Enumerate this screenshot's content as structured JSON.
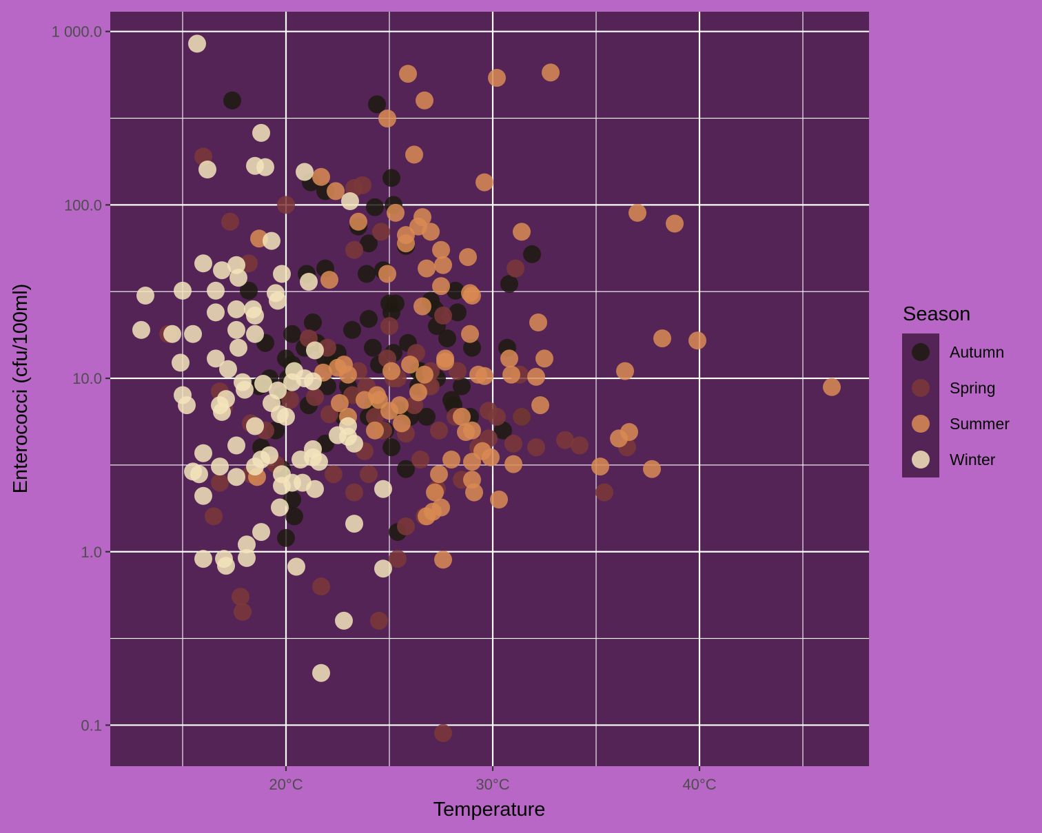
{
  "chart_data": {
    "type": "scatter",
    "xlabel": "Temperature",
    "ylabel": "Enterococci (cfu/100ml)",
    "x_unit": "°C",
    "y_scale": "log10",
    "xlim": [
      11.5,
      48.2
    ],
    "ylim": [
      0.058,
      1300
    ],
    "x_ticks": [
      20,
      30,
      40
    ],
    "x_tick_labels": [
      "20°C",
      "30°C",
      "40°C"
    ],
    "y_ticks": [
      0.1,
      1,
      10,
      100,
      1000
    ],
    "y_tick_labels": [
      "0.1",
      "1.0",
      "10.0",
      "100.0",
      "1 000.0"
    ],
    "grid": true,
    "legend_position": "right",
    "legend_title": "Season",
    "colors": {
      "panel_background": "#542457",
      "page_background": "#b967c7",
      "grid_major": "#ffffff",
      "grid_minor": "#ffffff"
    },
    "series": [
      {
        "name": "Autumn",
        "color": "#1f1a10",
        "points": [
          [
            17.4,
            400
          ],
          [
            24.4,
            380
          ],
          [
            21.2,
            135
          ],
          [
            21.9,
            120
          ],
          [
            25.1,
            143
          ],
          [
            24.3,
            97
          ],
          [
            25.2,
            100
          ],
          [
            23.5,
            75
          ],
          [
            24.0,
            60
          ],
          [
            25.8,
            58
          ],
          [
            21.0,
            40
          ],
          [
            21.9,
            43
          ],
          [
            24.7,
            42
          ],
          [
            23.9,
            40
          ],
          [
            18.2,
            32
          ],
          [
            21.3,
            21
          ],
          [
            23.2,
            19
          ],
          [
            25.0,
            27
          ],
          [
            25.3,
            27
          ],
          [
            25.1,
            24
          ],
          [
            27.0,
            28
          ],
          [
            27.2,
            25
          ],
          [
            28.2,
            32
          ],
          [
            31.9,
            52
          ],
          [
            30.8,
            35
          ],
          [
            19.0,
            16
          ],
          [
            20.0,
            13
          ],
          [
            20.3,
            18
          ],
          [
            20.9,
            15
          ],
          [
            21.5,
            16
          ],
          [
            21.9,
            13
          ],
          [
            24.2,
            15
          ],
          [
            24.5,
            12
          ],
          [
            25.2,
            14
          ],
          [
            25.9,
            16
          ],
          [
            26.4,
            11
          ],
          [
            27.3,
            20
          ],
          [
            27.8,
            17
          ],
          [
            28.3,
            24
          ],
          [
            29.0,
            15
          ],
          [
            30.7,
            15
          ],
          [
            18.7,
            9
          ],
          [
            19.2,
            10
          ],
          [
            19.5,
            5
          ],
          [
            19.8,
            8
          ],
          [
            20.1,
            10
          ],
          [
            20.3,
            12
          ],
          [
            21.1,
            7
          ],
          [
            22.0,
            9
          ],
          [
            22.2,
            12
          ],
          [
            22.8,
            6
          ],
          [
            23.1,
            8
          ],
          [
            24.0,
            6
          ],
          [
            24.2,
            7
          ],
          [
            24.8,
            5
          ],
          [
            25.1,
            4
          ],
          [
            25.8,
            3
          ],
          [
            26.0,
            6
          ],
          [
            26.4,
            9
          ],
          [
            26.8,
            6
          ],
          [
            27.3,
            10
          ],
          [
            28.1,
            7
          ],
          [
            28.5,
            9
          ],
          [
            28.9,
            6
          ],
          [
            30.5,
            5
          ],
          [
            31.4,
            6
          ],
          [
            18.8,
            4
          ],
          [
            19.8,
            3
          ],
          [
            20.3,
            2
          ],
          [
            20.4,
            1.6
          ],
          [
            20.0,
            1.2
          ],
          [
            21.9,
            4.2
          ],
          [
            25.4,
            1.3
          ],
          [
            24.5,
            7.0
          ],
          [
            23.0,
            9.0
          ],
          [
            25.5,
            6.5
          ],
          [
            28.0,
            7.5
          ],
          [
            26.5,
            11.0
          ],
          [
            22.5,
            14
          ],
          [
            24.0,
            22
          ]
        ]
      },
      {
        "name": "Spring",
        "color": "#7d3838",
        "points": [
          [
            16.0,
            190
          ],
          [
            17.3,
            80
          ],
          [
            20.0,
            100
          ],
          [
            23.3,
            125
          ],
          [
            23.7,
            130
          ],
          [
            24.6,
            70
          ],
          [
            23.3,
            55
          ],
          [
            18.2,
            46
          ],
          [
            21.1,
            17
          ],
          [
            22.0,
            15
          ],
          [
            23.5,
            11
          ],
          [
            23.9,
            9
          ],
          [
            24.9,
            13
          ],
          [
            25.4,
            10
          ],
          [
            26.3,
            14
          ],
          [
            27.0,
            11
          ],
          [
            27.6,
            23
          ],
          [
            26.9,
            9
          ],
          [
            28.3,
            11
          ],
          [
            14.3,
            18
          ],
          [
            16.8,
            8.4
          ],
          [
            17.0,
            6.8
          ],
          [
            18.3,
            5.5
          ],
          [
            19.0,
            5
          ],
          [
            20.2,
            7.5
          ],
          [
            21.4,
            7.8
          ],
          [
            22.1,
            6.2
          ],
          [
            23.2,
            8
          ],
          [
            23.8,
            3.8
          ],
          [
            24.3,
            6
          ],
          [
            24.7,
            5
          ],
          [
            25.0,
            20
          ],
          [
            25.2,
            10
          ],
          [
            25.8,
            4.8
          ],
          [
            26.2,
            7
          ],
          [
            27.0,
            9
          ],
          [
            27.4,
            5
          ],
          [
            28.2,
            6
          ],
          [
            29.3,
            4
          ],
          [
            29.8,
            4.5
          ],
          [
            30.2,
            6
          ],
          [
            31.0,
            4.2
          ],
          [
            32.1,
            4
          ],
          [
            28.5,
            2.6
          ],
          [
            27.3,
            2.3
          ],
          [
            26.7,
            1.6
          ],
          [
            25.8,
            1.4
          ],
          [
            25.4,
            0.91
          ],
          [
            23.3,
            2.2
          ],
          [
            22.3,
            2.8
          ],
          [
            17.8,
            0.55
          ],
          [
            17.9,
            0.45
          ],
          [
            21.7,
            0.63
          ],
          [
            24.5,
            0.4
          ],
          [
            27.6,
            0.09
          ],
          [
            16.5,
            1.6
          ],
          [
            16.8,
            2.5
          ],
          [
            18.3,
            2.8
          ],
          [
            19.5,
            3.2
          ],
          [
            31.1,
            43
          ],
          [
            31.4,
            6
          ],
          [
            29.8,
            6.5
          ],
          [
            33.5,
            4.4
          ],
          [
            34.2,
            4.1
          ],
          [
            35.4,
            2.2
          ],
          [
            36.5,
            4.0
          ],
          [
            31.3,
            10.5
          ],
          [
            24.0,
            2.8
          ],
          [
            26.5,
            3.4
          ]
        ]
      },
      {
        "name": "Summer",
        "color": "#d98b52",
        "points": [
          [
            25.9,
            570
          ],
          [
            30.2,
            540
          ],
          [
            32.8,
            580
          ],
          [
            26.7,
            400
          ],
          [
            24.9,
            315
          ],
          [
            26.2,
            195
          ],
          [
            29.6,
            135
          ],
          [
            21.7,
            145
          ],
          [
            22.4,
            120
          ],
          [
            25.3,
            90
          ],
          [
            23.5,
            80
          ],
          [
            26.6,
            85
          ],
          [
            26.4,
            75
          ],
          [
            27.0,
            70
          ],
          [
            28.8,
            50
          ],
          [
            27.5,
            55
          ],
          [
            26.8,
            43
          ],
          [
            27.6,
            45
          ],
          [
            25.8,
            60
          ],
          [
            25.8,
            67
          ],
          [
            31.4,
            70
          ],
          [
            37.0,
            90
          ],
          [
            38.8,
            78
          ],
          [
            22.1,
            37
          ],
          [
            24.9,
            40
          ],
          [
            28.9,
            31
          ],
          [
            29.0,
            30
          ],
          [
            26.6,
            26
          ],
          [
            27.5,
            34
          ],
          [
            28.9,
            18
          ],
          [
            32.2,
            21
          ],
          [
            38.2,
            17
          ],
          [
            39.9,
            16.5
          ],
          [
            27.7,
            13
          ],
          [
            30.8,
            13
          ],
          [
            32.5,
            13
          ],
          [
            36.4,
            11
          ],
          [
            25.1,
            11
          ],
          [
            24.4,
            8
          ],
          [
            24.5,
            7.5
          ],
          [
            25.5,
            7
          ],
          [
            26.0,
            12
          ],
          [
            26.7,
            10.5
          ],
          [
            27.7,
            12.5
          ],
          [
            29.3,
            10.5
          ],
          [
            29.6,
            10.3
          ],
          [
            30.9,
            10.5
          ],
          [
            32.1,
            10.2
          ],
          [
            32.3,
            7
          ],
          [
            22.8,
            12
          ],
          [
            23.0,
            10.5
          ],
          [
            23.8,
            7.5
          ],
          [
            24.3,
            5
          ],
          [
            25.0,
            6.5
          ],
          [
            25.6,
            5.5
          ],
          [
            28.5,
            6
          ],
          [
            29.0,
            5
          ],
          [
            29.5,
            3.8
          ],
          [
            29.0,
            3.3
          ],
          [
            28.7,
            4.9
          ],
          [
            29.9,
            3.5
          ],
          [
            31.0,
            3.2
          ],
          [
            29.1,
            2.2
          ],
          [
            29.0,
            2.6
          ],
          [
            27.4,
            2.8
          ],
          [
            27.2,
            2.2
          ],
          [
            27.1,
            1.7
          ],
          [
            27.5,
            1.8
          ],
          [
            26.8,
            1.6
          ],
          [
            27.6,
            0.9
          ],
          [
            35.2,
            3.1
          ],
          [
            36.1,
            4.5
          ],
          [
            36.6,
            4.9
          ],
          [
            37.7,
            3.0
          ],
          [
            46.4,
            8.9
          ],
          [
            21.8,
            10.8
          ],
          [
            22.6,
            7.2
          ],
          [
            23.0,
            6.0
          ],
          [
            18.7,
            64
          ],
          [
            18.6,
            2.7
          ],
          [
            30.3,
            2.0
          ],
          [
            28.0,
            3.4
          ],
          [
            22.5,
            11.5
          ],
          [
            26.4,
            8.3
          ]
        ]
      },
      {
        "name": "Winter",
        "color": "#f3e4bb",
        "points": [
          [
            15.7,
            850
          ],
          [
            18.8,
            260
          ],
          [
            16.2,
            160
          ],
          [
            18.5,
            168
          ],
          [
            19.0,
            165
          ],
          [
            20.9,
            155
          ],
          [
            23.1,
            105
          ],
          [
            19.3,
            62
          ],
          [
            16.0,
            46
          ],
          [
            16.9,
            42
          ],
          [
            17.6,
            45
          ],
          [
            17.7,
            38
          ],
          [
            19.8,
            40
          ],
          [
            21.1,
            36
          ],
          [
            13.2,
            30
          ],
          [
            15.0,
            32
          ],
          [
            16.6,
            32
          ],
          [
            17.6,
            25
          ],
          [
            18.4,
            25
          ],
          [
            18.5,
            23
          ],
          [
            19.5,
            31
          ],
          [
            19.6,
            28
          ],
          [
            16.6,
            24
          ],
          [
            13.0,
            19
          ],
          [
            14.5,
            18
          ],
          [
            15.5,
            18
          ],
          [
            17.6,
            19
          ],
          [
            18.5,
            18
          ],
          [
            17.7,
            15
          ],
          [
            21.4,
            14.5
          ],
          [
            16.6,
            13
          ],
          [
            17.2,
            11.3
          ],
          [
            17.9,
            9.5
          ],
          [
            18.0,
            8.6
          ],
          [
            18.9,
            9.3
          ],
          [
            19.6,
            8.5
          ],
          [
            20.3,
            9.5
          ],
          [
            20.4,
            11
          ],
          [
            20.9,
            10
          ],
          [
            21.3,
            9.6
          ],
          [
            14.9,
            12.3
          ],
          [
            15.0,
            8
          ],
          [
            15.2,
            7
          ],
          [
            16.8,
            7.0
          ],
          [
            16.9,
            6.4
          ],
          [
            17.1,
            7.6
          ],
          [
            18.5,
            5.3
          ],
          [
            19.3,
            7.2
          ],
          [
            19.7,
            6.2
          ],
          [
            20.0,
            6.0
          ],
          [
            17.6,
            4.1
          ],
          [
            18.5,
            3.1
          ],
          [
            18.8,
            3.4
          ],
          [
            19.2,
            3.6
          ],
          [
            19.8,
            2.8
          ],
          [
            19.8,
            2.4
          ],
          [
            20.3,
            2.5
          ],
          [
            20.8,
            2.5
          ],
          [
            20.7,
            3.4
          ],
          [
            21.3,
            3.5
          ],
          [
            21.6,
            3.3
          ],
          [
            21.4,
            2.3
          ],
          [
            21.3,
            3.9
          ],
          [
            22.5,
            4.7
          ],
          [
            23.0,
            4.6
          ],
          [
            23.0,
            5.3
          ],
          [
            23.3,
            4.2
          ],
          [
            24.7,
            2.3
          ],
          [
            15.5,
            2.9
          ],
          [
            15.8,
            2.8
          ],
          [
            16.0,
            3.7
          ],
          [
            16.0,
            2.1
          ],
          [
            16.8,
            3.1
          ],
          [
            17.6,
            2.7
          ],
          [
            19.7,
            1.8
          ],
          [
            18.8,
            1.3
          ],
          [
            18.1,
            1.1
          ],
          [
            18.1,
            0.92
          ],
          [
            16.0,
            0.91
          ],
          [
            17.0,
            0.91
          ],
          [
            17.1,
            0.83
          ],
          [
            20.5,
            0.82
          ],
          [
            24.7,
            0.8
          ],
          [
            22.8,
            0.4
          ],
          [
            21.7,
            0.2
          ],
          [
            23.3,
            1.45
          ]
        ]
      }
    ]
  }
}
